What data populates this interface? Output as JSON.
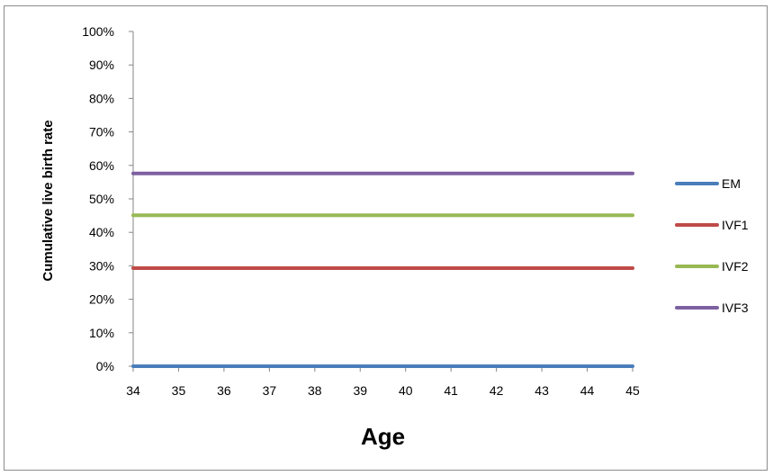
{
  "chart_data": {
    "type": "line",
    "title": "",
    "xlabel": "Age",
    "ylabel": "Cumulative live birth rate",
    "x": [
      34,
      35,
      36,
      37,
      38,
      39,
      40,
      41,
      42,
      43,
      44,
      45
    ],
    "x_tick_labels": [
      "34",
      "35",
      "36",
      "37",
      "38",
      "39",
      "40",
      "41",
      "42",
      "43",
      "44",
      "45"
    ],
    "xlim": [
      34,
      45
    ],
    "ylim": [
      0,
      100
    ],
    "y_unit": "%",
    "y_tick_labels": [
      "0%",
      "10%",
      "20%",
      "30%",
      "40%",
      "50%",
      "60%",
      "70%",
      "80%",
      "90%",
      "100%"
    ],
    "grid": false,
    "legend_position": "right",
    "series": [
      {
        "name": "EM",
        "color": "#4a7ebb",
        "values": [
          0,
          0,
          0,
          0,
          0,
          0,
          0,
          0,
          0,
          0,
          0,
          0
        ]
      },
      {
        "name": "IVF1",
        "color": "#be4b48",
        "values": [
          29.3,
          29.3,
          29.3,
          29.3,
          29.3,
          29.3,
          29.3,
          29.3,
          29.3,
          29.3,
          29.3,
          29.3
        ]
      },
      {
        "name": "IVF2",
        "color": "#98b954",
        "values": [
          45.1,
          45.1,
          45.1,
          45.1,
          45.1,
          45.1,
          45.1,
          45.1,
          45.1,
          45.1,
          45.1,
          45.1
        ]
      },
      {
        "name": "IVF3",
        "color": "#7d60a0",
        "values": [
          57.6,
          57.6,
          57.6,
          57.6,
          57.6,
          57.6,
          57.6,
          57.6,
          57.6,
          57.6,
          57.6,
          57.6
        ]
      }
    ]
  }
}
